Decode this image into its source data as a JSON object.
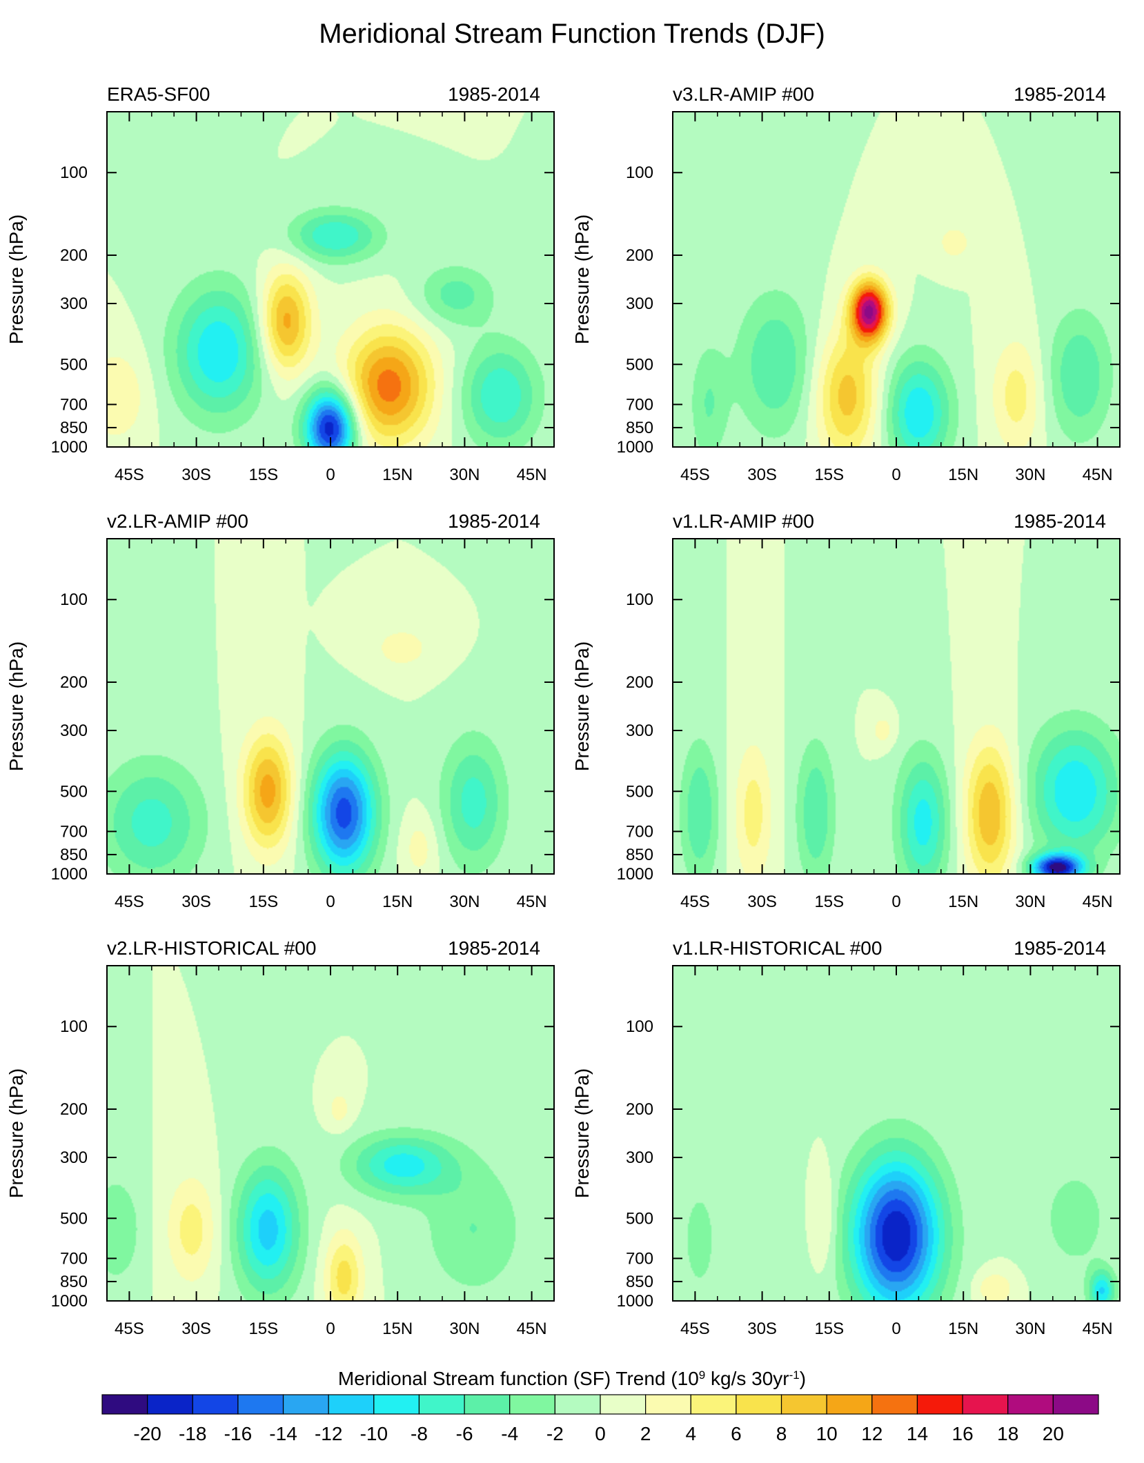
{
  "title": "Meridional Stream Function Trends (DJF)",
  "colorbar": {
    "label_main": "Meridional Stream function (SF) Trend (10",
    "label_exp1": "9",
    "label_mid": " kg/s 30yr",
    "label_exp2": "-1",
    "label_end": ")",
    "ticks": [
      "-20",
      "-18",
      "-16",
      "-14",
      "-12",
      "-10",
      "-8",
      "-6",
      "-4",
      "-2",
      "0",
      "2",
      "4",
      "6",
      "8",
      "10",
      "12",
      "14",
      "16",
      "18",
      "20"
    ],
    "colors": [
      "#2f0b80",
      "#0a24c8",
      "#1346e6",
      "#1e78f0",
      "#29a6f2",
      "#1ed0fa",
      "#22f0f2",
      "#40f5c9",
      "#5cf0a8",
      "#80f7a0",
      "#b4fbc0",
      "#e8ffc8",
      "#fbfbb0",
      "#fbf47a",
      "#f9e34c",
      "#f5c630",
      "#f5a617",
      "#f57210",
      "#f51a0a",
      "#e6144e",
      "#b00c7e",
      "#8c0a86"
    ]
  },
  "chart_data": [
    {
      "type": "contour",
      "title": "ERA5-SF00",
      "period": "1985-2014",
      "ylabel": "Pressure (hPa)",
      "yticks": [
        "100",
        "200",
        "300",
        "500",
        "700",
        "850",
        "1000"
      ],
      "xticks": [
        "45S",
        "30S",
        "15S",
        "0",
        "15N",
        "30N",
        "45N"
      ],
      "xlim": [
        -50,
        50
      ],
      "features": [
        {
          "lat": -48,
          "p": 650,
          "v": 4,
          "sx": 5,
          "sy": 0.28
        },
        {
          "lat": -25,
          "p": 450,
          "v": -10,
          "sx": 7,
          "sy": 0.38
        },
        {
          "lat": -10,
          "p": 350,
          "v": 11,
          "sx": 4,
          "sy": 0.3
        },
        {
          "lat": 0,
          "p": 850,
          "v": -20,
          "sx": 4,
          "sy": 0.22
        },
        {
          "lat": 1,
          "p": 170,
          "v": -8,
          "sx": 7,
          "sy": 0.15
        },
        {
          "lat": 13,
          "p": 600,
          "v": 13,
          "sx": 7,
          "sy": 0.34
        },
        {
          "lat": 28,
          "p": 280,
          "v": -5,
          "sx": 6,
          "sy": 0.18
        },
        {
          "lat": 38,
          "p": 650,
          "v": -8,
          "sx": 6,
          "sy": 0.3
        }
      ]
    },
    {
      "type": "contour",
      "title": "v3.LR-AMIP  #00",
      "period": "1985-2014",
      "ylabel": "Pressure (hPa)",
      "yticks": [
        "100",
        "200",
        "300",
        "500",
        "700",
        "850",
        "1000"
      ],
      "xticks": [
        "45S",
        "30S",
        "15S",
        "0",
        "15N",
        "30N",
        "45N"
      ],
      "xlim": [
        -50,
        50
      ],
      "features": [
        {
          "lat": -42,
          "p": 700,
          "v": -4,
          "sx": 3,
          "sy": 0.36
        },
        {
          "lat": -27,
          "p": 500,
          "v": -6,
          "sx": 6,
          "sy": 0.42
        },
        {
          "lat": -11,
          "p": 650,
          "v": 9,
          "sx": 5,
          "sy": 0.38
        },
        {
          "lat": -6,
          "p": 320,
          "v": 20,
          "sx": 3,
          "sy": 0.18
        },
        {
          "lat": 5,
          "p": 750,
          "v": -10,
          "sx": 5,
          "sy": 0.32
        },
        {
          "lat": 27,
          "p": 650,
          "v": 5,
          "sx": 4,
          "sy": 0.34
        },
        {
          "lat": 41,
          "p": 550,
          "v": -6,
          "sx": 5,
          "sy": 0.38
        },
        {
          "lat": 13,
          "p": 180,
          "v": 3,
          "sx": 3,
          "sy": 0.12
        }
      ]
    },
    {
      "type": "contour",
      "title": "v2.LR-AMIP  #00",
      "period": "1985-2014",
      "ylabel": "Pressure (hPa)",
      "yticks": [
        "100",
        "200",
        "300",
        "500",
        "700",
        "850",
        "1000"
      ],
      "xticks": [
        "45S",
        "30S",
        "15S",
        "0",
        "15N",
        "30N",
        "45N"
      ],
      "xlim": [
        -50,
        50
      ],
      "features": [
        {
          "lat": -40,
          "p": 650,
          "v": -7,
          "sx": 8,
          "sy": 0.36
        },
        {
          "lat": -14,
          "p": 500,
          "v": 11,
          "sx": 4,
          "sy": 0.34
        },
        {
          "lat": 3,
          "p": 600,
          "v": -17,
          "sx": 5,
          "sy": 0.36
        },
        {
          "lat": 32,
          "p": 550,
          "v": -7,
          "sx": 5,
          "sy": 0.38
        },
        {
          "lat": 16,
          "p": 150,
          "v": 3,
          "sx": 5,
          "sy": 0.14
        },
        {
          "lat": 20,
          "p": 800,
          "v": 3,
          "sx": 3,
          "sy": 0.2
        }
      ]
    },
    {
      "type": "contour",
      "title": "v1.LR-AMIP  #00",
      "period": "1985-2014",
      "ylabel": "Pressure (hPa)",
      "yticks": [
        "100",
        "200",
        "300",
        "500",
        "700",
        "850",
        "1000"
      ],
      "xticks": [
        "45S",
        "30S",
        "15S",
        "0",
        "15N",
        "30N",
        "45N"
      ],
      "xlim": [
        -50,
        50
      ],
      "features": [
        {
          "lat": -44,
          "p": 600,
          "v": -6,
          "sx": 3,
          "sy": 0.42
        },
        {
          "lat": -32,
          "p": 600,
          "v": 5,
          "sx": 3,
          "sy": 0.42
        },
        {
          "lat": -18,
          "p": 600,
          "v": -6,
          "sx": 3,
          "sy": 0.42
        },
        {
          "lat": -3,
          "p": 300,
          "v": 3,
          "sx": 2,
          "sy": 0.1
        },
        {
          "lat": 6,
          "p": 650,
          "v": -9,
          "sx": 4,
          "sy": 0.4
        },
        {
          "lat": 21,
          "p": 600,
          "v": 10,
          "sx": 4,
          "sy": 0.42
        },
        {
          "lat": 40,
          "p": 500,
          "v": -10,
          "sx": 7,
          "sy": 0.38
        },
        {
          "lat": 36,
          "p": 950,
          "v": -20,
          "sx": 4,
          "sy": 0.08
        }
      ]
    },
    {
      "type": "contour",
      "title": "v2.LR-HISTORICAL  #00",
      "period": "1985-2014",
      "ylabel": "Pressure (hPa)",
      "yticks": [
        "100",
        "200",
        "300",
        "500",
        "700",
        "850",
        "1000"
      ],
      "xticks": [
        "45S",
        "30S",
        "15S",
        "0",
        "15N",
        "30N",
        "45N"
      ],
      "xlim": [
        -50,
        50
      ],
      "features": [
        {
          "lat": -48,
          "p": 550,
          "v": -4,
          "sx": 4,
          "sy": 0.32
        },
        {
          "lat": -31,
          "p": 550,
          "v": 5,
          "sx": 4,
          "sy": 0.32
        },
        {
          "lat": -14,
          "p": 550,
          "v": -11,
          "sx": 5,
          "sy": 0.38
        },
        {
          "lat": 2,
          "p": 200,
          "v": 3,
          "sx": 2,
          "sy": 0.12
        },
        {
          "lat": 3,
          "p": 820,
          "v": 7,
          "sx": 3,
          "sy": 0.26
        },
        {
          "lat": 16,
          "p": 320,
          "v": -9,
          "sx": 8,
          "sy": 0.18
        },
        {
          "lat": 32,
          "p": 550,
          "v": -4,
          "sx": 8,
          "sy": 0.4
        }
      ]
    },
    {
      "type": "contour",
      "title": "v1.LR-HISTORICAL  #00",
      "period": "1985-2014",
      "ylabel": "Pressure (hPa)",
      "yticks": [
        "100",
        "200",
        "300",
        "500",
        "700",
        "850",
        "1000"
      ],
      "xticks": [
        "45S",
        "30S",
        "15S",
        "0",
        "15N",
        "30N",
        "45N"
      ],
      "xlim": [
        -50,
        50
      ],
      "features": [
        {
          "lat": 0,
          "p": 580,
          "v": -20,
          "sx": 7,
          "sy": 0.46
        },
        {
          "lat": -16,
          "p": 500,
          "v": 3,
          "sx": 2,
          "sy": 0.3
        },
        {
          "lat": 22,
          "p": 900,
          "v": 4,
          "sx": 3,
          "sy": 0.1
        },
        {
          "lat": 40,
          "p": 500,
          "v": -3,
          "sx": 6,
          "sy": 0.35
        },
        {
          "lat": 46,
          "p": 920,
          "v": -10,
          "sx": 2,
          "sy": 0.12
        },
        {
          "lat": -44,
          "p": 600,
          "v": -3,
          "sx": 3,
          "sy": 0.35
        }
      ]
    }
  ]
}
